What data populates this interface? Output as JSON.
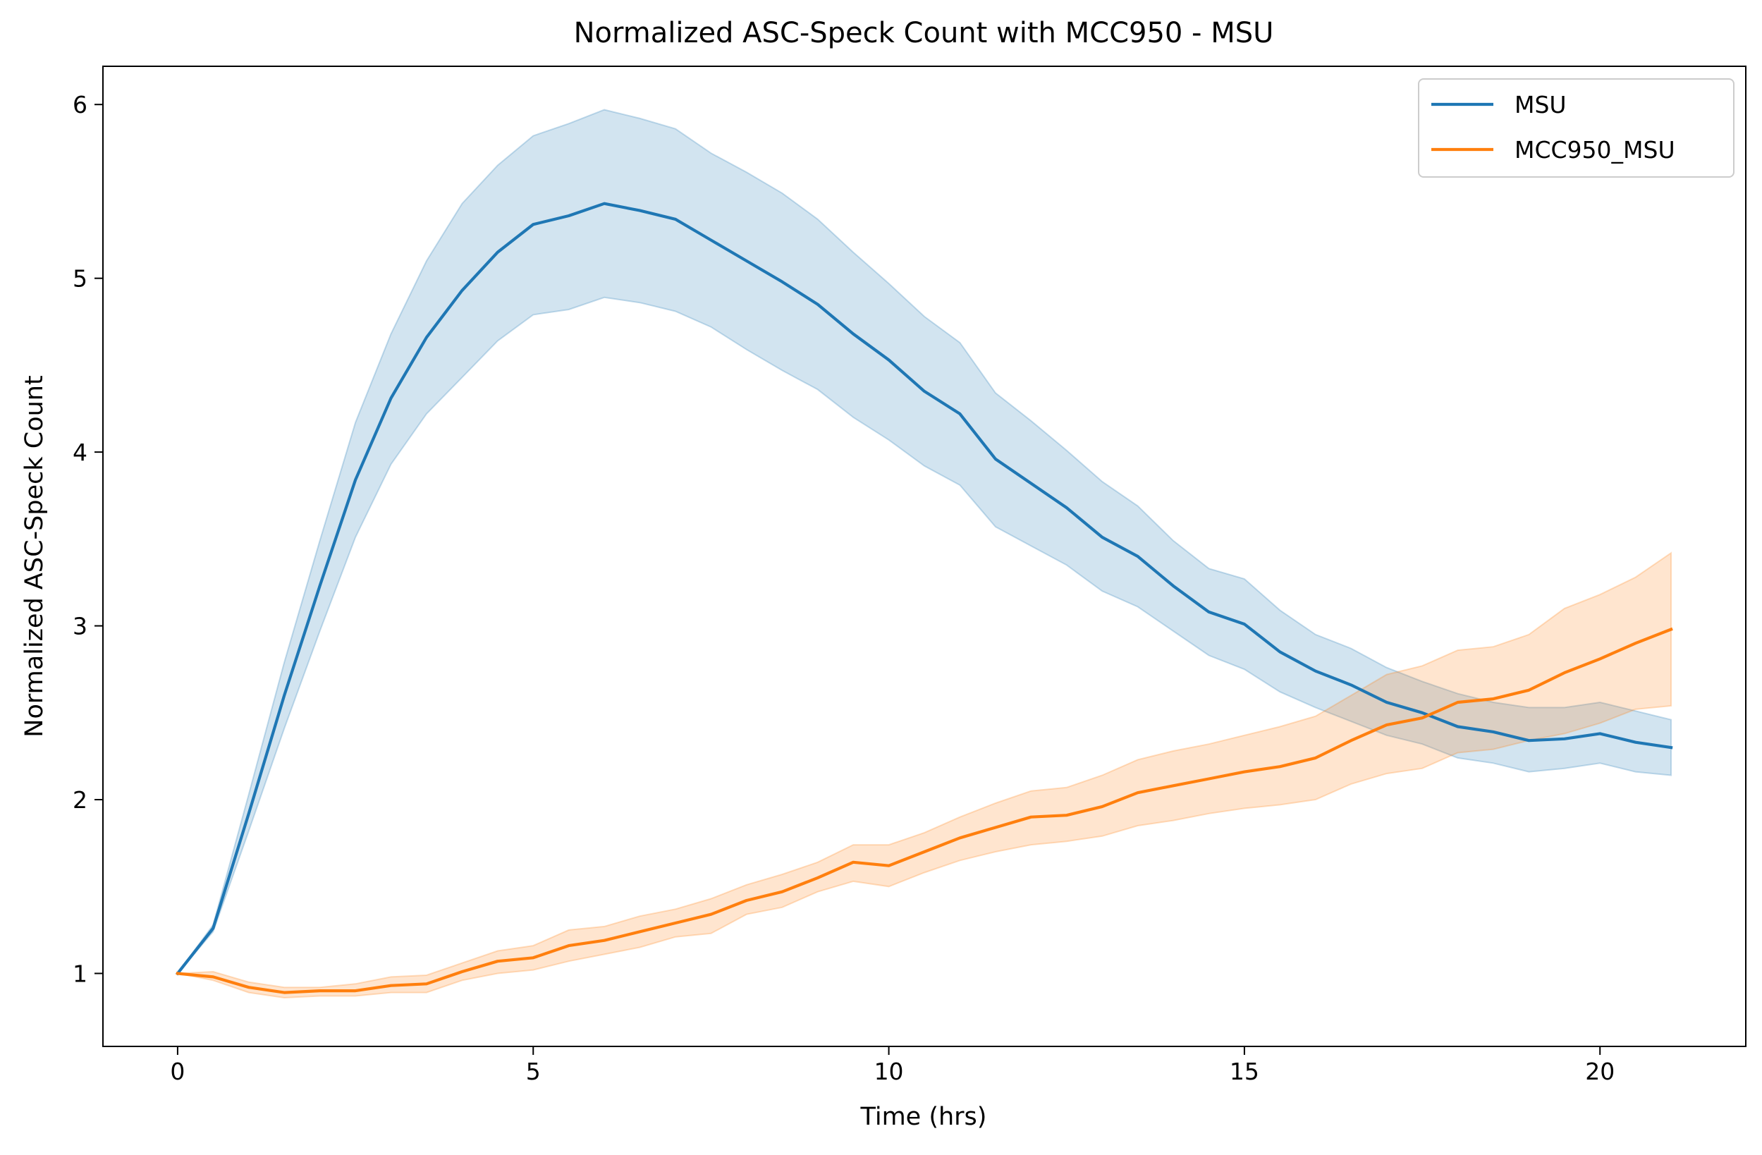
{
  "chart_data": {
    "type": "line",
    "title": "Normalized ASC-Speck Count with MCC950 - MSU",
    "xlabel": "Time (hrs)",
    "ylabel": "Normalized ASC-Speck Count",
    "xlim": [
      -1.05,
      22.05
    ],
    "ylim": [
      0.58,
      6.22
    ],
    "xticks": [
      0,
      5,
      10,
      15,
      20
    ],
    "yticks": [
      1,
      2,
      3,
      4,
      5,
      6
    ],
    "grid": false,
    "legend_position": "top-right",
    "x": [
      0,
      0.5,
      1,
      1.5,
      2,
      2.5,
      3,
      3.5,
      4,
      4.5,
      5,
      5.5,
      6,
      6.5,
      7,
      7.5,
      8,
      8.5,
      9,
      9.5,
      10,
      10.5,
      11,
      11.5,
      12,
      12.5,
      13,
      13.5,
      14,
      14.5,
      15,
      15.5,
      16,
      16.5,
      17,
      17.5,
      18,
      18.5,
      19,
      19.5,
      20,
      20.5,
      21
    ],
    "series": [
      {
        "name": "MSU",
        "color": "#1f77b4",
        "band_color": "#1f77b4",
        "values": [
          1.0,
          1.26,
          1.92,
          2.6,
          3.23,
          3.84,
          4.31,
          4.66,
          4.93,
          5.15,
          5.31,
          5.36,
          5.43,
          5.39,
          5.34,
          5.22,
          5.1,
          4.98,
          4.85,
          4.68,
          4.53,
          4.35,
          4.22,
          3.96,
          3.82,
          3.68,
          3.51,
          3.4,
          3.23,
          3.08,
          3.01,
          2.85,
          2.74,
          2.66,
          2.56,
          2.5,
          2.42,
          2.39,
          2.34,
          2.35,
          2.38,
          2.33,
          2.3
        ],
        "lower": [
          1.0,
          1.24,
          1.82,
          2.41,
          2.97,
          3.51,
          3.93,
          4.22,
          4.43,
          4.64,
          4.79,
          4.82,
          4.89,
          4.86,
          4.81,
          4.72,
          4.59,
          4.47,
          4.36,
          4.2,
          4.07,
          3.92,
          3.81,
          3.57,
          3.46,
          3.35,
          3.2,
          3.11,
          2.97,
          2.83,
          2.75,
          2.62,
          2.53,
          2.45,
          2.37,
          2.32,
          2.24,
          2.21,
          2.16,
          2.18,
          2.21,
          2.16,
          2.14
        ],
        "upper": [
          1.0,
          1.28,
          2.03,
          2.79,
          3.49,
          4.17,
          4.68,
          5.1,
          5.43,
          5.65,
          5.82,
          5.89,
          5.97,
          5.92,
          5.86,
          5.72,
          5.61,
          5.49,
          5.34,
          5.15,
          4.97,
          4.78,
          4.63,
          4.34,
          4.18,
          4.01,
          3.83,
          3.69,
          3.49,
          3.33,
          3.27,
          3.09,
          2.95,
          2.87,
          2.76,
          2.68,
          2.61,
          2.56,
          2.53,
          2.53,
          2.56,
          2.51,
          2.46
        ]
      },
      {
        "name": "MCC950_MSU",
        "color": "#ff7f0e",
        "band_color": "#ff7f0e",
        "values": [
          1.0,
          0.98,
          0.92,
          0.89,
          0.9,
          0.9,
          0.93,
          0.94,
          1.01,
          1.07,
          1.09,
          1.16,
          1.19,
          1.24,
          1.29,
          1.34,
          1.42,
          1.47,
          1.55,
          1.64,
          1.62,
          1.7,
          1.78,
          1.84,
          1.9,
          1.91,
          1.96,
          2.04,
          2.08,
          2.12,
          2.16,
          2.19,
          2.24,
          2.34,
          2.43,
          2.47,
          2.56,
          2.58,
          2.63,
          2.73,
          2.81,
          2.9,
          2.98
        ],
        "lower": [
          1.0,
          0.96,
          0.89,
          0.86,
          0.87,
          0.87,
          0.89,
          0.89,
          0.96,
          1.0,
          1.02,
          1.07,
          1.11,
          1.15,
          1.21,
          1.23,
          1.34,
          1.38,
          1.47,
          1.53,
          1.5,
          1.58,
          1.65,
          1.7,
          1.74,
          1.76,
          1.79,
          1.85,
          1.88,
          1.92,
          1.95,
          1.97,
          2.0,
          2.09,
          2.15,
          2.18,
          2.27,
          2.29,
          2.34,
          2.38,
          2.44,
          2.52,
          2.54
        ],
        "upper": [
          1.0,
          1.01,
          0.95,
          0.92,
          0.92,
          0.94,
          0.98,
          0.99,
          1.06,
          1.13,
          1.16,
          1.25,
          1.27,
          1.33,
          1.37,
          1.43,
          1.51,
          1.57,
          1.64,
          1.74,
          1.74,
          1.81,
          1.9,
          1.98,
          2.05,
          2.07,
          2.14,
          2.23,
          2.28,
          2.32,
          2.37,
          2.42,
          2.48,
          2.6,
          2.72,
          2.77,
          2.86,
          2.88,
          2.95,
          3.1,
          3.18,
          3.28,
          3.42
        ]
      }
    ]
  }
}
